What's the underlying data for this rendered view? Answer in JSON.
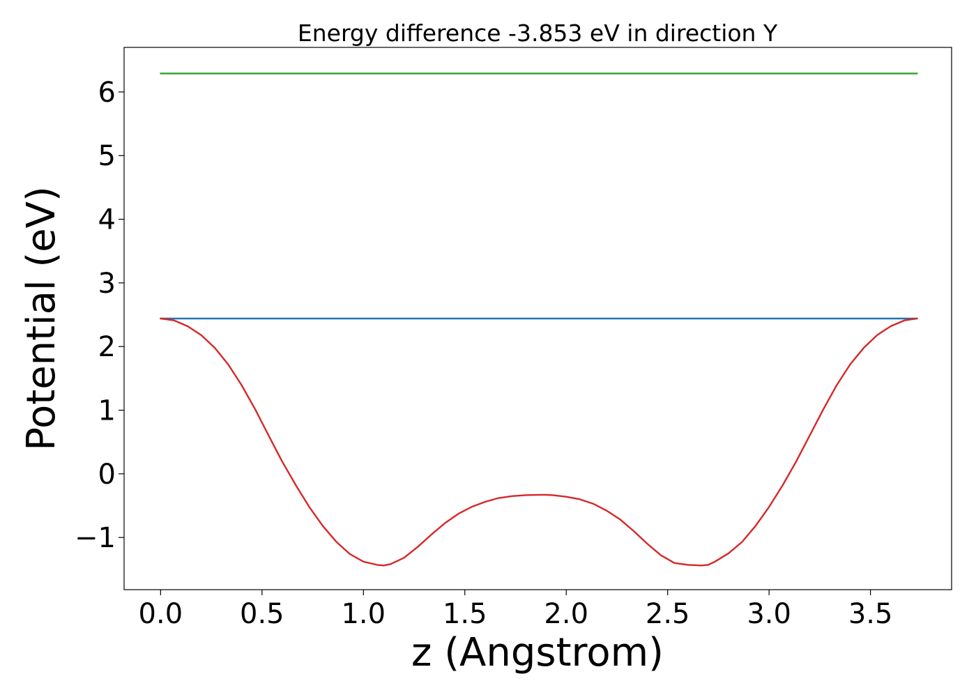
{
  "chart_data": {
    "type": "line",
    "title": "Energy difference -3.853 eV in direction Y",
    "xlabel": "z (Angstrom)",
    "ylabel": "Potential (eV)",
    "xlim": [
      -0.18,
      3.9
    ],
    "ylim": [
      -1.82,
      6.7
    ],
    "xticks": [
      0.0,
      0.5,
      1.0,
      1.5,
      2.0,
      2.5,
      3.0,
      3.5
    ],
    "xtick_labels": [
      "0.0",
      "0.5",
      "1.0",
      "1.5",
      "2.0",
      "2.5",
      "3.0",
      "3.5"
    ],
    "yticks": [
      -1,
      0,
      1,
      2,
      3,
      4,
      5,
      6
    ],
    "ytick_labels": [
      "−1",
      "0",
      "1",
      "2",
      "3",
      "4",
      "5",
      "6"
    ],
    "grid": false,
    "legend": "none",
    "series": [
      {
        "color": "#2ca02c",
        "x": [
          0.0,
          3.73
        ],
        "y": [
          6.29,
          6.29
        ]
      },
      {
        "color": "#1f77b4",
        "x": [
          0.0,
          3.73
        ],
        "y": [
          2.44,
          2.44
        ]
      },
      {
        "color": "#d62728",
        "x": [
          0.0,
          0.067,
          0.133,
          0.2,
          0.267,
          0.333,
          0.4,
          0.467,
          0.533,
          0.6,
          0.667,
          0.733,
          0.8,
          0.867,
          0.933,
          1.0,
          1.067,
          1.1,
          1.133,
          1.2,
          1.267,
          1.333,
          1.4,
          1.467,
          1.533,
          1.6,
          1.667,
          1.733,
          1.8,
          1.867,
          1.9,
          1.933,
          2.0,
          2.067,
          2.133,
          2.2,
          2.267,
          2.333,
          2.4,
          2.467,
          2.533,
          2.6,
          2.667,
          2.7,
          2.733,
          2.8,
          2.867,
          2.933,
          3.0,
          3.067,
          3.133,
          3.2,
          3.267,
          3.333,
          3.4,
          3.467,
          3.533,
          3.6,
          3.667,
          3.73
        ],
        "y": [
          2.44,
          2.41,
          2.32,
          2.18,
          1.98,
          1.72,
          1.39,
          1.01,
          0.6,
          0.19,
          -0.18,
          -0.52,
          -0.82,
          -1.07,
          -1.26,
          -1.38,
          -1.43,
          -1.44,
          -1.42,
          -1.32,
          -1.15,
          -0.96,
          -0.78,
          -0.63,
          -0.52,
          -0.44,
          -0.38,
          -0.35,
          -0.335,
          -0.33,
          -0.33,
          -0.335,
          -0.36,
          -0.4,
          -0.47,
          -0.58,
          -0.72,
          -0.9,
          -1.1,
          -1.28,
          -1.4,
          -1.43,
          -1.44,
          -1.43,
          -1.38,
          -1.25,
          -1.07,
          -0.82,
          -0.52,
          -0.18,
          0.19,
          0.6,
          1.01,
          1.39,
          1.72,
          1.98,
          2.18,
          2.32,
          2.41,
          2.44
        ]
      }
    ]
  }
}
